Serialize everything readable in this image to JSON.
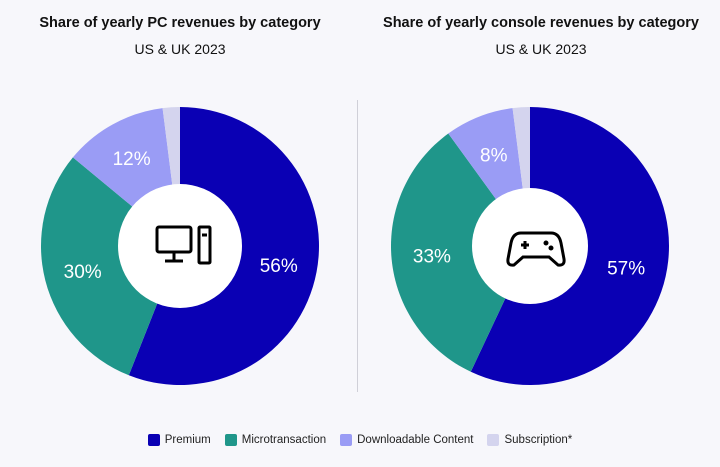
{
  "chart_data": [
    {
      "type": "pie",
      "title": "Share of yearly PC revenues by category",
      "subtitle": "US & UK 2023",
      "center_icon": "desktop-pc-icon",
      "categories": [
        "Premium",
        "Microtransaction",
        "Downloadable Content",
        "Subscription*"
      ],
      "values": [
        56,
        30,
        12,
        2
      ],
      "data_labels": [
        "56%",
        "30%",
        "12%",
        ""
      ]
    },
    {
      "type": "pie",
      "title": "Share of yearly console revenues by category",
      "subtitle": "US & UK 2023",
      "center_icon": "gamepad-icon",
      "categories": [
        "Premium",
        "Microtransaction",
        "Downloadable Content",
        "Subscription*"
      ],
      "values": [
        57,
        33,
        8,
        2
      ],
      "data_labels": [
        "57%",
        "33%",
        "8%",
        ""
      ]
    }
  ],
  "legend": [
    "Premium",
    "Microtransaction",
    "Downloadable Content",
    "Subscription*"
  ],
  "colors": [
    "#0a00b4",
    "#1f968a",
    "#9a9cf5",
    "#d4d4ee"
  ]
}
